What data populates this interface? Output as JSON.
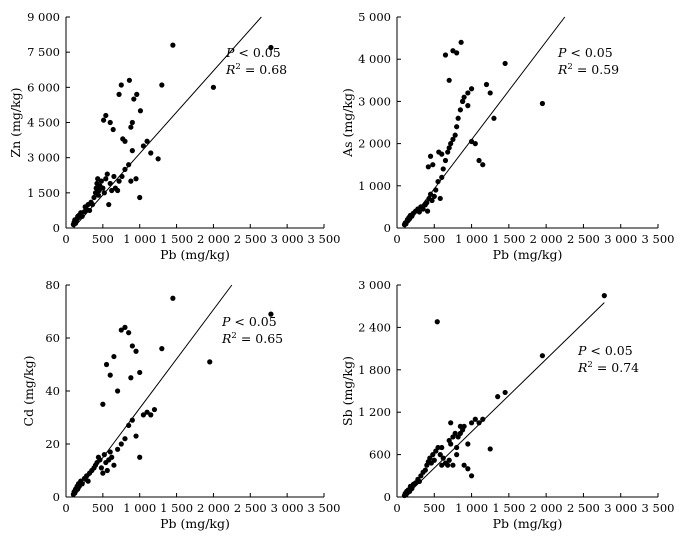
{
  "chart_data": [
    {
      "type": "scatter",
      "title": "",
      "xlabel": "Pb (mg/kg)",
      "ylabel": "Zn (mg/kg)",
      "xlim": [
        0,
        3500
      ],
      "ylim": [
        0,
        9000
      ],
      "xticks": [
        0,
        500,
        1000,
        1500,
        2000,
        2500,
        3000,
        3500
      ],
      "xtick_labels": [
        "0",
        "500",
        "1 000",
        "1 500",
        "2 000",
        "2 500",
        "3 000",
        "3 500"
      ],
      "yticks": [
        0,
        1500,
        3000,
        4500,
        6000,
        7500,
        9000
      ],
      "ytick_labels": [
        "0",
        "1 500",
        "3 000",
        "4 500",
        "6 000",
        "7 500",
        "9 000"
      ],
      "fit_line": [
        [
          100,
          0
        ],
        [
          2650,
          9000
        ]
      ],
      "stats": {
        "p_prefix": "P",
        "p_rest": " < 0.05",
        "r_prefix": "R",
        "r_sup": "2",
        "r_rest": " = 0.68"
      },
      "points": [
        [
          100,
          150
        ],
        [
          110,
          250
        ],
        [
          120,
          350
        ],
        [
          130,
          200
        ],
        [
          140,
          300
        ],
        [
          150,
          400
        ],
        [
          160,
          500
        ],
        [
          170,
          450
        ],
        [
          180,
          550
        ],
        [
          200,
          650
        ],
        [
          220,
          500
        ],
        [
          250,
          700
        ],
        [
          260,
          900
        ],
        [
          280,
          800
        ],
        [
          300,
          1000
        ],
        [
          320,
          750
        ],
        [
          340,
          1100
        ],
        [
          360,
          1000
        ],
        [
          380,
          1300
        ],
        [
          400,
          1500
        ],
        [
          410,
          1700
        ],
        [
          420,
          1900
        ],
        [
          430,
          2100
        ],
        [
          440,
          1400
        ],
        [
          450,
          1600
        ],
        [
          460,
          1800
        ],
        [
          480,
          2000
        ],
        [
          500,
          1700
        ],
        [
          520,
          1500
        ],
        [
          540,
          2100
        ],
        [
          560,
          2300
        ],
        [
          580,
          1000
        ],
        [
          600,
          1900
        ],
        [
          620,
          1600
        ],
        [
          650,
          2200
        ],
        [
          670,
          1700
        ],
        [
          700,
          1600
        ],
        [
          720,
          2000
        ],
        [
          760,
          2200
        ],
        [
          800,
          2500
        ],
        [
          850,
          2700
        ],
        [
          880,
          2000
        ],
        [
          950,
          2100
        ],
        [
          1000,
          1300
        ],
        [
          1050,
          3500
        ],
        [
          1100,
          3700
        ],
        [
          1150,
          3200
        ],
        [
          1250,
          2950
        ],
        [
          1300,
          6100
        ],
        [
          510,
          4600
        ],
        [
          540,
          4800
        ],
        [
          600,
          4500
        ],
        [
          640,
          4200
        ],
        [
          720,
          5700
        ],
        [
          750,
          6100
        ],
        [
          800,
          3700
        ],
        [
          860,
          6300
        ],
        [
          880,
          4300
        ],
        [
          900,
          4500
        ],
        [
          920,
          5500
        ],
        [
          960,
          5700
        ],
        [
          1010,
          5000
        ],
        [
          770,
          3800
        ],
        [
          900,
          3300
        ],
        [
          1450,
          7800
        ],
        [
          2000,
          6000
        ],
        [
          2780,
          7700
        ]
      ]
    },
    {
      "type": "scatter",
      "title": "",
      "xlabel": "Pb (mg/kg)",
      "ylabel": "As (mg/kg)",
      "xlim": [
        0,
        3500
      ],
      "ylim": [
        0,
        5000
      ],
      "xticks": [
        0,
        500,
        1000,
        1500,
        2000,
        2500,
        3000,
        3500
      ],
      "xtick_labels": [
        "0",
        "500",
        "1 000",
        "1 500",
        "2 000",
        "2 500",
        "3 000",
        "3 500"
      ],
      "yticks": [
        0,
        1000,
        2000,
        3000,
        4000,
        5000
      ],
      "ytick_labels": [
        "0",
        "1 000",
        "2 000",
        "3 000",
        "4 000",
        "5 000"
      ],
      "fit_line": [
        [
          100,
          0
        ],
        [
          2250,
          5000
        ]
      ],
      "stats": {
        "p_prefix": "P",
        "p_rest": " < 0.05",
        "r_prefix": "R",
        "r_sup": "2",
        "r_rest": " = 0.59"
      },
      "points": [
        [
          100,
          80
        ],
        [
          110,
          120
        ],
        [
          120,
          100
        ],
        [
          130,
          150
        ],
        [
          140,
          200
        ],
        [
          150,
          180
        ],
        [
          160,
          250
        ],
        [
          170,
          220
        ],
        [
          180,
          300
        ],
        [
          200,
          280
        ],
        [
          220,
          350
        ],
        [
          250,
          400
        ],
        [
          280,
          450
        ],
        [
          300,
          380
        ],
        [
          320,
          500
        ],
        [
          350,
          450
        ],
        [
          380,
          550
        ],
        [
          400,
          600
        ],
        [
          410,
          400
        ],
        [
          430,
          700
        ],
        [
          450,
          800
        ],
        [
          470,
          650
        ],
        [
          500,
          750
        ],
        [
          520,
          900
        ],
        [
          550,
          1100
        ],
        [
          580,
          700
        ],
        [
          600,
          1200
        ],
        [
          620,
          1400
        ],
        [
          650,
          1600
        ],
        [
          680,
          1800
        ],
        [
          700,
          1900
        ],
        [
          720,
          2000
        ],
        [
          750,
          2100
        ],
        [
          780,
          2200
        ],
        [
          800,
          2400
        ],
        [
          820,
          2600
        ],
        [
          850,
          2800
        ],
        [
          880,
          3000
        ],
        [
          900,
          3100
        ],
        [
          950,
          3200
        ],
        [
          1000,
          3300
        ],
        [
          420,
          1450
        ],
        [
          450,
          1700
        ],
        [
          480,
          1500
        ],
        [
          560,
          1800
        ],
        [
          600,
          1750
        ],
        [
          650,
          4100
        ],
        [
          700,
          3500
        ],
        [
          750,
          4200
        ],
        [
          800,
          4150
        ],
        [
          860,
          4400
        ],
        [
          880,
          3000
        ],
        [
          950,
          2900
        ],
        [
          1000,
          2050
        ],
        [
          1050,
          2000
        ],
        [
          1100,
          1600
        ],
        [
          1150,
          1500
        ],
        [
          1200,
          3400
        ],
        [
          1250,
          3200
        ],
        [
          1300,
          2600
        ],
        [
          1450,
          3900
        ],
        [
          1950,
          2950
        ]
      ]
    },
    {
      "type": "scatter",
      "title": "",
      "xlabel": "Pb (mg/kg)",
      "ylabel": "Cd (mg/kg)",
      "xlim": [
        0,
        3500
      ],
      "ylim": [
        0,
        80
      ],
      "xticks": [
        0,
        500,
        1000,
        1500,
        2000,
        2500,
        3000,
        3500
      ],
      "xtick_labels": [
        "0",
        "500",
        "1 000",
        "1 500",
        "2 000",
        "2 500",
        "3 000",
        "3 500"
      ],
      "yticks": [
        0,
        20,
        40,
        60,
        80
      ],
      "ytick_labels": [
        "0",
        "20",
        "40",
        "60",
        "80"
      ],
      "fit_line": [
        [
          100,
          0
        ],
        [
          2250,
          80
        ]
      ],
      "stats": {
        "p_prefix": "P",
        "p_rest": " < 0.05",
        "r_prefix": "R",
        "r_sup": "2",
        "r_rest": " = 0.65"
      },
      "points": [
        [
          100,
          1
        ],
        [
          110,
          2
        ],
        [
          120,
          1.5
        ],
        [
          130,
          3
        ],
        [
          140,
          2.5
        ],
        [
          150,
          4
        ],
        [
          160,
          3
        ],
        [
          170,
          5
        ],
        [
          180,
          4
        ],
        [
          200,
          6
        ],
        [
          220,
          5
        ],
        [
          250,
          7
        ],
        [
          280,
          8
        ],
        [
          300,
          6
        ],
        [
          320,
          9
        ],
        [
          350,
          10
        ],
        [
          380,
          11
        ],
        [
          400,
          12
        ],
        [
          420,
          13
        ],
        [
          440,
          15
        ],
        [
          460,
          14
        ],
        [
          480,
          11
        ],
        [
          500,
          9
        ],
        [
          520,
          16
        ],
        [
          540,
          13
        ],
        [
          560,
          10
        ],
        [
          580,
          14
        ],
        [
          600,
          17
        ],
        [
          620,
          15
        ],
        [
          650,
          12
        ],
        [
          700,
          18
        ],
        [
          750,
          20
        ],
        [
          800,
          22
        ],
        [
          850,
          27
        ],
        [
          900,
          29
        ],
        [
          950,
          23
        ],
        [
          1000,
          15
        ],
        [
          1050,
          31
        ],
        [
          1100,
          32
        ],
        [
          1150,
          31
        ],
        [
          1200,
          33
        ],
        [
          500,
          35
        ],
        [
          550,
          50
        ],
        [
          600,
          46
        ],
        [
          650,
          53
        ],
        [
          700,
          40
        ],
        [
          750,
          63
        ],
        [
          800,
          64
        ],
        [
          850,
          62
        ],
        [
          880,
          45
        ],
        [
          900,
          57
        ],
        [
          950,
          55
        ],
        [
          1000,
          47
        ],
        [
          1300,
          56
        ],
        [
          1450,
          75
        ],
        [
          1950,
          51
        ],
        [
          2780,
          69
        ]
      ]
    },
    {
      "type": "scatter",
      "title": "",
      "xlabel": "Pb (mg/kg)",
      "ylabel": "Sb (mg/kg)",
      "xlim": [
        0,
        3500
      ],
      "ylim": [
        0,
        3000
      ],
      "xticks": [
        0,
        500,
        1000,
        1500,
        2000,
        2500,
        3000,
        3500
      ],
      "xtick_labels": [
        "0",
        "500",
        "1 000",
        "1 500",
        "2 000",
        "2 500",
        "3 000",
        "3 500"
      ],
      "yticks": [
        0,
        600,
        1200,
        1800,
        2400,
        3000
      ],
      "ytick_labels": [
        "0",
        "600",
        "1 200",
        "1 800",
        "2 400",
        "3 000"
      ],
      "fit_line": [
        [
          100,
          0
        ],
        [
          2780,
          2750
        ]
      ],
      "stats": {
        "p_prefix": "P",
        "p_rest": " < 0.05",
        "r_prefix": "R",
        "r_sup": "2",
        "r_rest": " = 0.74"
      },
      "points": [
        [
          100,
          20
        ],
        [
          110,
          50
        ],
        [
          120,
          30
        ],
        [
          130,
          80
        ],
        [
          140,
          60
        ],
        [
          150,
          100
        ],
        [
          170,
          80
        ],
        [
          180,
          150
        ],
        [
          200,
          120
        ],
        [
          220,
          180
        ],
        [
          250,
          200
        ],
        [
          280,
          250
        ],
        [
          300,
          220
        ],
        [
          320,
          300
        ],
        [
          350,
          350
        ],
        [
          380,
          380
        ],
        [
          400,
          450
        ],
        [
          420,
          500
        ],
        [
          440,
          550
        ],
        [
          460,
          480
        ],
        [
          480,
          600
        ],
        [
          500,
          520
        ],
        [
          520,
          650
        ],
        [
          550,
          700
        ],
        [
          580,
          600
        ],
        [
          600,
          700
        ],
        [
          620,
          550
        ],
        [
          650,
          480
        ],
        [
          680,
          450
        ],
        [
          700,
          800
        ],
        [
          720,
          750
        ],
        [
          750,
          850
        ],
        [
          780,
          900
        ],
        [
          800,
          700
        ],
        [
          820,
          850
        ],
        [
          850,
          900
        ],
        [
          880,
          950
        ],
        [
          900,
          1000
        ],
        [
          950,
          750
        ],
        [
          1000,
          1050
        ],
        [
          1050,
          1100
        ],
        [
          1100,
          1050
        ],
        [
          1150,
          1100
        ],
        [
          1250,
          680
        ],
        [
          1350,
          1420
        ],
        [
          1450,
          1480
        ],
        [
          1950,
          2000
        ],
        [
          2780,
          2850
        ],
        [
          540,
          2480
        ],
        [
          600,
          450
        ],
        [
          700,
          520
        ],
        [
          750,
          450
        ],
        [
          800,
          600
        ],
        [
          900,
          450
        ],
        [
          950,
          400
        ],
        [
          1000,
          300
        ],
        [
          850,
          1000
        ],
        [
          720,
          1050
        ]
      ]
    }
  ]
}
